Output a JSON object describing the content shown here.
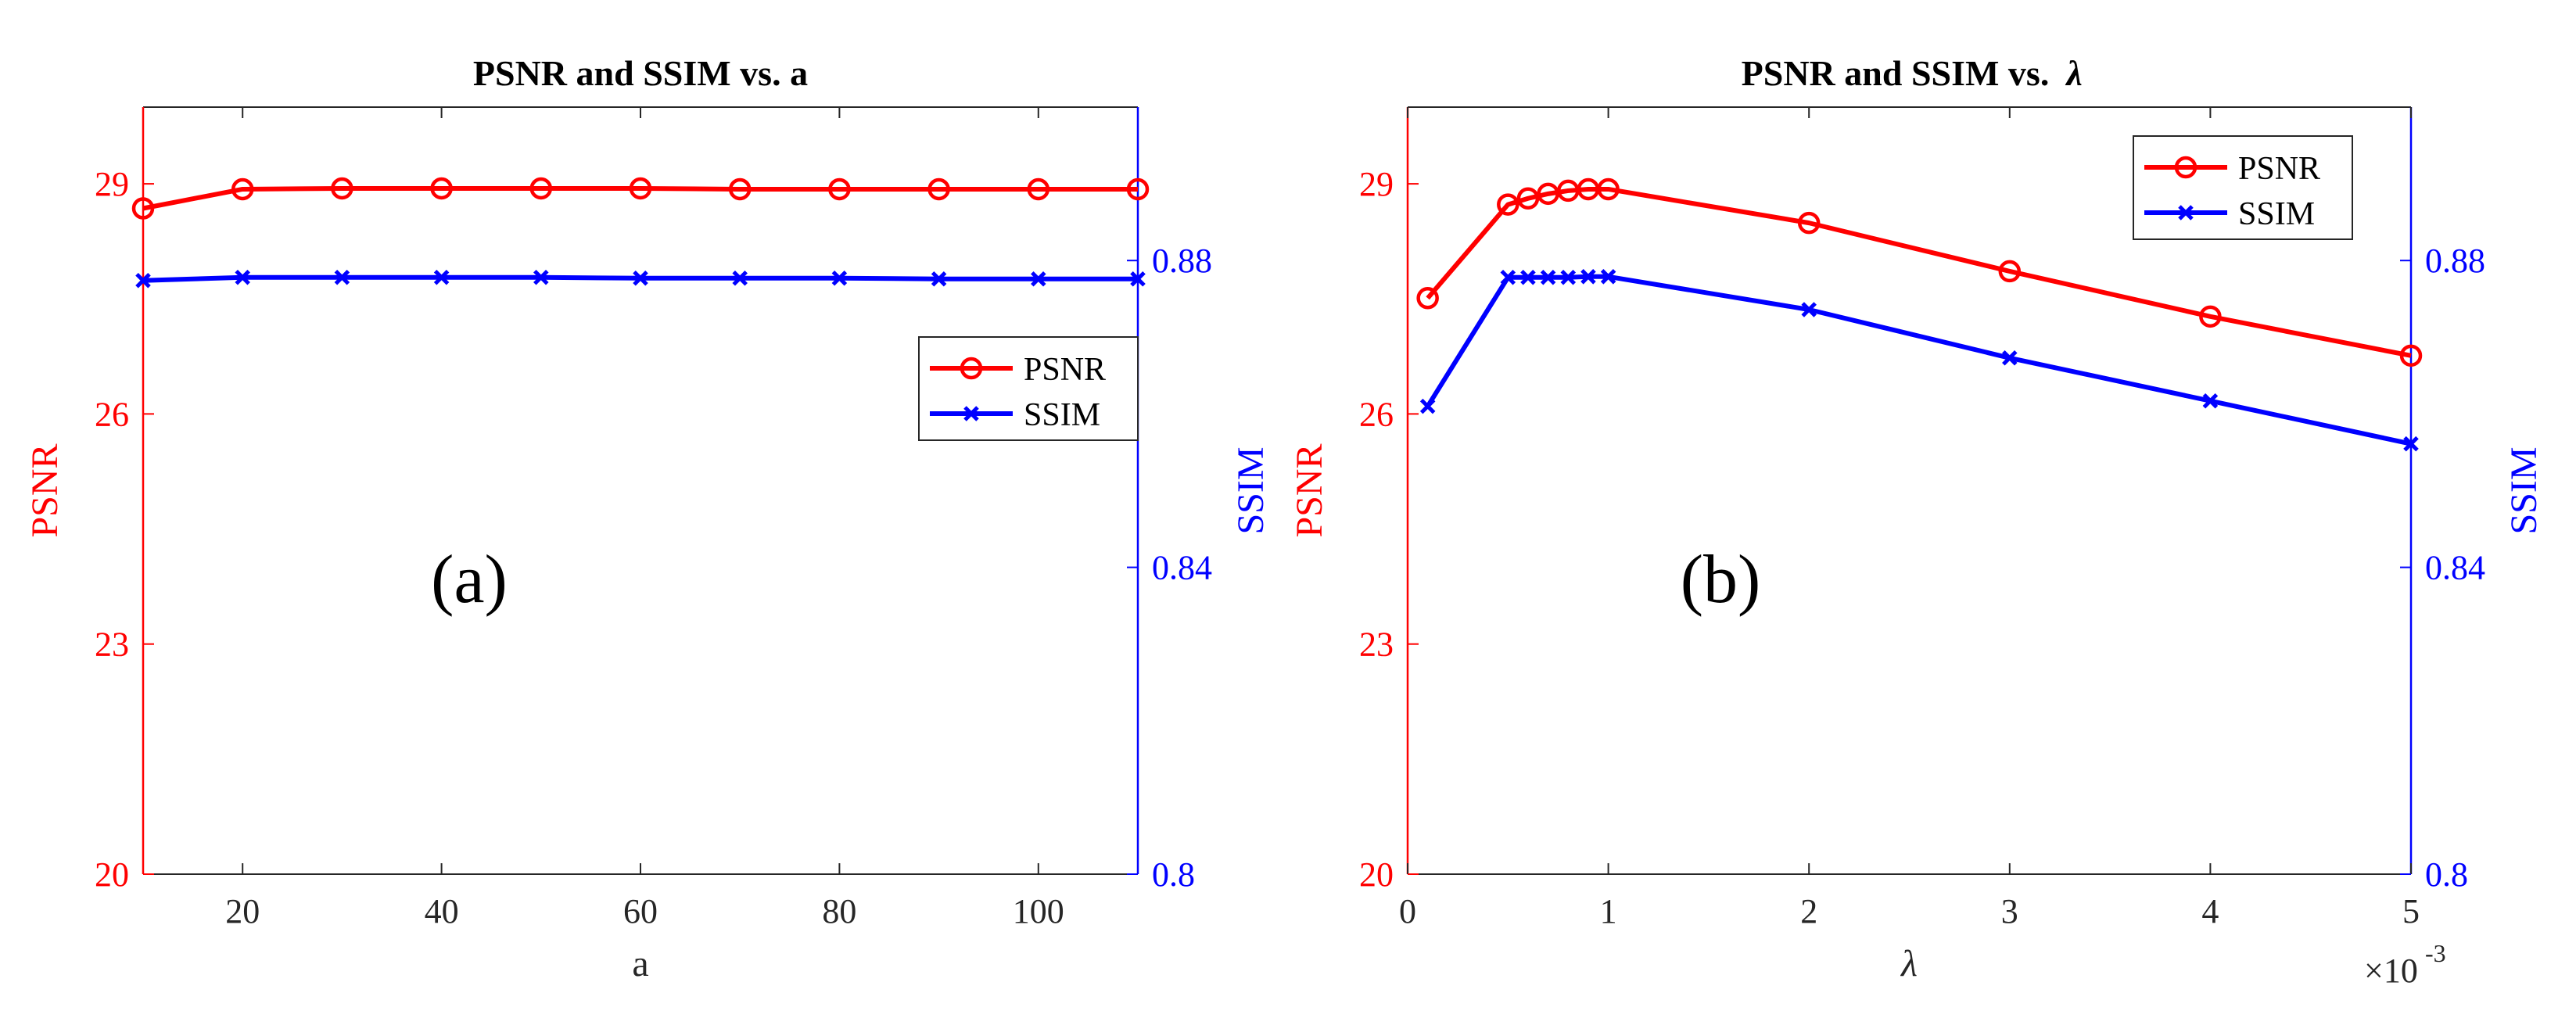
{
  "colors": {
    "psnr": "#ff0000",
    "ssim": "#0000ff",
    "axis": "#262626",
    "title": "#000000"
  },
  "chart_data": [
    {
      "type": "line",
      "title": "PSNR and SSIM vs. a",
      "panel_label": "(a)",
      "xlabel": "a",
      "ylabel_left": "PSNR",
      "ylabel_right": "SSIM",
      "xlim": [
        10,
        110
      ],
      "ylim_left": [
        20,
        30
      ],
      "ylim_right": [
        0.8,
        0.9
      ],
      "xticks": [
        20,
        40,
        60,
        80,
        100
      ],
      "xtick_labels": [
        "20",
        "40",
        "60",
        "80",
        "100"
      ],
      "yticks_left": [
        20,
        23,
        26,
        29
      ],
      "ytick_labels_left": [
        "20",
        "23",
        "26",
        "29"
      ],
      "yticks_right": [
        0.8,
        0.84,
        0.88
      ],
      "ytick_labels_right": [
        "0.8",
        "0.84",
        "0.88"
      ],
      "x_exponent_label": "",
      "legend_position": "center-right",
      "x": [
        10,
        20,
        30,
        40,
        50,
        60,
        70,
        80,
        90,
        100,
        110
      ],
      "series": [
        {
          "name": "PSNR",
          "axis": "left",
          "marker": "circle",
          "values": [
            28.68,
            28.93,
            28.94,
            28.94,
            28.94,
            28.94,
            28.93,
            28.93,
            28.93,
            28.93,
            28.93
          ]
        },
        {
          "name": "SSIM",
          "axis": "right",
          "marker": "x",
          "values": [
            0.8774,
            0.8778,
            0.8778,
            0.8778,
            0.8778,
            0.8777,
            0.8777,
            0.8777,
            0.8776,
            0.8776,
            0.8776
          ]
        }
      ]
    },
    {
      "type": "line",
      "title": "PSNR and SSIM vs.",
      "title_symbol": "λ",
      "panel_label": "(b)",
      "xlabel": "λ",
      "ylabel_left": "PSNR",
      "ylabel_right": "SSIM",
      "xlim": [
        0,
        5
      ],
      "ylim_left": [
        20,
        30
      ],
      "ylim_right": [
        0.8,
        0.9
      ],
      "xticks": [
        0,
        1,
        2,
        3,
        4,
        5
      ],
      "xtick_labels": [
        "0",
        "1",
        "2",
        "3",
        "4",
        "5"
      ],
      "yticks_left": [
        20,
        23,
        26,
        29
      ],
      "ytick_labels_left": [
        "20",
        "23",
        "26",
        "29"
      ],
      "yticks_right": [
        0.8,
        0.84,
        0.88
      ],
      "ytick_labels_right": [
        "0.8",
        "0.84",
        "0.88"
      ],
      "x_exponent_label": "×10",
      "x_exponent_power": "-3",
      "legend_position": "top-right",
      "x": [
        0.1,
        0.5,
        0.6,
        0.7,
        0.8,
        0.9,
        1.0,
        2.0,
        3.0,
        4.0,
        5.0
      ],
      "series": [
        {
          "name": "PSNR",
          "axis": "left",
          "marker": "circle",
          "values": [
            27.51,
            28.73,
            28.81,
            28.87,
            28.91,
            28.93,
            28.93,
            28.49,
            27.86,
            27.27,
            26.76
          ]
        },
        {
          "name": "SSIM",
          "axis": "right",
          "marker": "x",
          "values": [
            0.861,
            0.8778,
            0.8778,
            0.8778,
            0.8778,
            0.8779,
            0.8779,
            0.8736,
            0.8673,
            0.8617,
            0.8561
          ]
        }
      ]
    }
  ]
}
